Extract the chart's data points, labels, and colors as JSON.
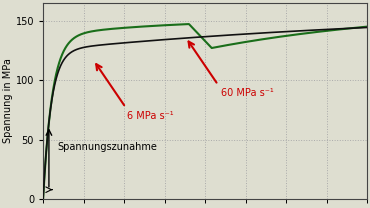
{
  "ylabel": "Spannung in MPa",
  "ylim": [
    0,
    165
  ],
  "xlim": [
    0,
    1.0
  ],
  "yticks": [
    0,
    50,
    100,
    150
  ],
  "background_color": "#deded0",
  "grid_color": "#aaaaaa",
  "curve_color_black": "#111111",
  "curve_color_green": "#1a6e1a",
  "annotation_color": "#cc0000",
  "annotation_6": "6 MPa s⁻¹",
  "annotation_60": "60 MPa s⁻¹",
  "annotation_spann": "Spannungszunahme",
  "ylabel_fontsize": 7,
  "tick_fontsize": 7,
  "annotation_fontsize": 7
}
